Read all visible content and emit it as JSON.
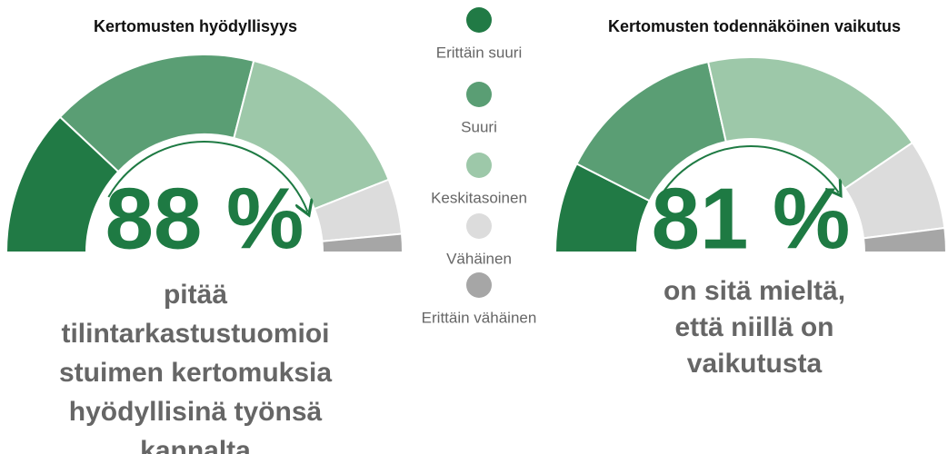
{
  "legend": {
    "categories": [
      "Erittäin suuri",
      "Suuri",
      "Keskitasoinen",
      "Vähäinen",
      "Erittäin vähäinen"
    ],
    "colors": [
      "#217a45",
      "#5a9e74",
      "#9dc8a9",
      "#dcdcdc",
      "#a6a6a6"
    ]
  },
  "chart_data": [
    {
      "type": "gauge",
      "title": "Kertomusten hyödyllisyys",
      "values": [
        24,
        34,
        30,
        9,
        3
      ],
      "headline": "88 %",
      "caption": [
        "pitää",
        "tilintarkastustuomioi",
        "stuimen kertomuksia",
        "hyödyllisinä työnsä",
        "kannalta"
      ]
    },
    {
      "type": "gauge",
      "title": "Kertomusten todennäköinen vaikutus",
      "values": [
        15,
        28,
        38,
        15,
        4
      ],
      "headline": "81 %",
      "caption": [
        "on sitä mieltä,",
        "että niillä on",
        "vaikutusta"
      ]
    }
  ]
}
